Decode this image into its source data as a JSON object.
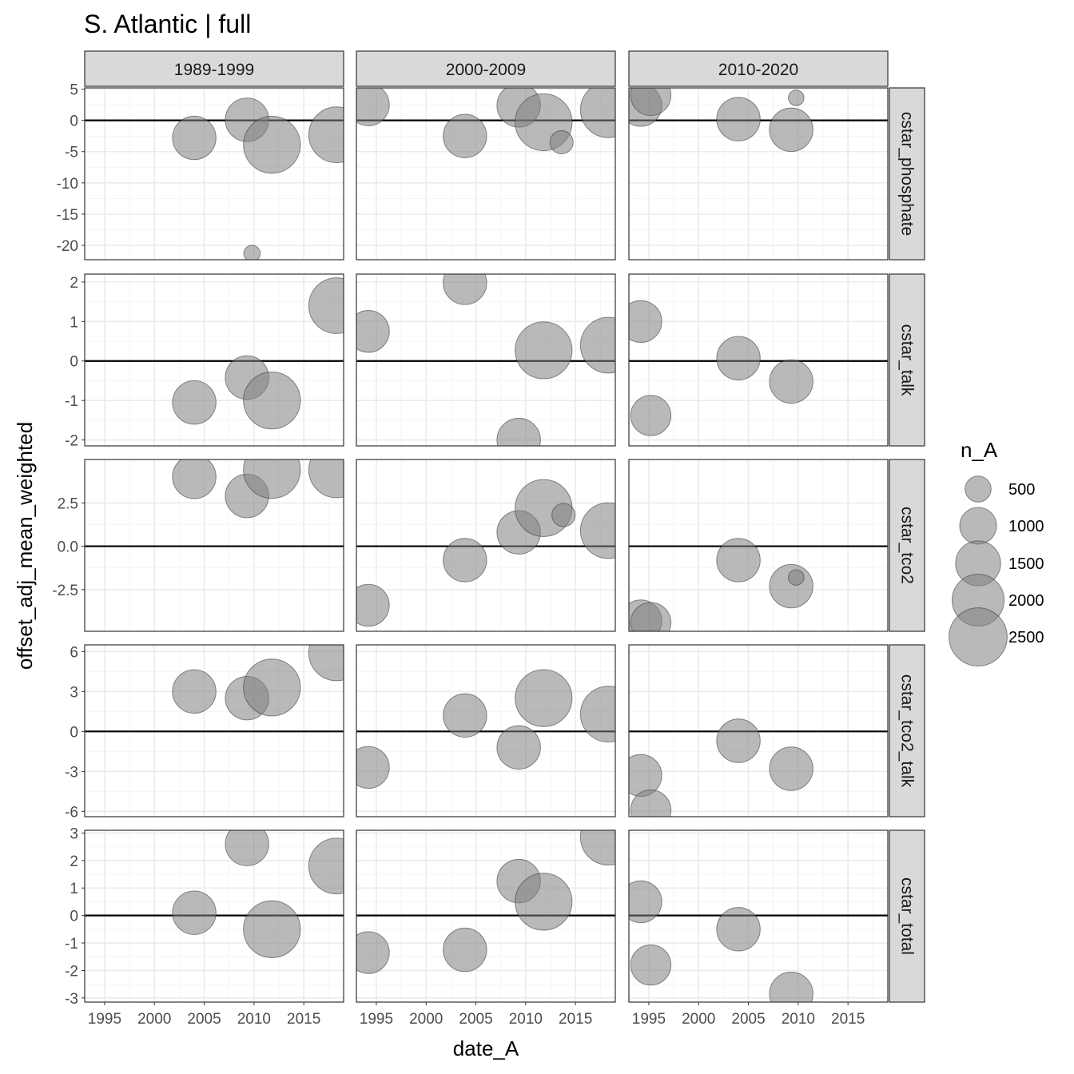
{
  "chart_data": {
    "type": "scatter",
    "title": "S. Atlantic | full",
    "xlabel": "date_A",
    "ylabel": "offset_adj_mean_weighted",
    "xlim": [
      1993,
      2019
    ],
    "x_ticks": [
      1995,
      2000,
      2005,
      2010,
      2015
    ],
    "x_tick_labels": [
      "1995",
      "2000",
      "2005",
      "2010",
      "2015"
    ],
    "columns": [
      "1989-1999",
      "2000-2009",
      "2010-2020"
    ],
    "rows": [
      {
        "label": "cstar_phosphate",
        "ylim": [
          -22.3,
          5.2
        ],
        "ticks": [
          5,
          0,
          -5,
          -10,
          -15,
          -20
        ],
        "tick_labels": [
          "5",
          "0",
          "-5",
          "-10",
          "-15",
          "-20"
        ],
        "panels": [
          [
            {
              "x": 2004,
              "y": -2.8,
              "n": 1400
            },
            {
              "x": 2009.3,
              "y": 0.1,
              "n": 1400
            },
            {
              "x": 2011.8,
              "y": -3.9,
              "n": 2400
            },
            {
              "x": 2018.3,
              "y": -2.3,
              "n": 2300
            },
            {
              "x": 2009.8,
              "y": -21.3,
              "n": 200
            }
          ],
          [
            {
              "x": 1994.2,
              "y": 2.5,
              "n": 1300
            },
            {
              "x": 2003.9,
              "y": -2.5,
              "n": 1400
            },
            {
              "x": 2009.3,
              "y": 2.4,
              "n": 1400
            },
            {
              "x": 2011.8,
              "y": -0.3,
              "n": 2400
            },
            {
              "x": 2013.6,
              "y": -3.5,
              "n": 400
            },
            {
              "x": 2018.3,
              "y": 1.7,
              "n": 2300
            }
          ],
          [
            {
              "x": 1994.2,
              "y": 2.4,
              "n": 1300
            },
            {
              "x": 1995.2,
              "y": 4.0,
              "n": 1200
            },
            {
              "x": 2004,
              "y": 0.2,
              "n": 1400
            },
            {
              "x": 2009.3,
              "y": -1.5,
              "n": 1400
            },
            {
              "x": 2009.8,
              "y": 3.6,
              "n": 180
            }
          ]
        ]
      },
      {
        "label": "cstar_talk",
        "ylim": [
          -2.15,
          2.2
        ],
        "ticks": [
          2,
          1,
          0,
          -1,
          -2
        ],
        "tick_labels": [
          "2",
          "1",
          "0",
          "-1",
          "-2"
        ],
        "panels": [
          [
            {
              "x": 2004,
              "y": -1.05,
              "n": 1400
            },
            {
              "x": 2009.3,
              "y": -0.42,
              "n": 1400
            },
            {
              "x": 2011.8,
              "y": -1.0,
              "n": 2400
            },
            {
              "x": 2018.3,
              "y": 1.4,
              "n": 2300
            }
          ],
          [
            {
              "x": 1994.2,
              "y": 0.75,
              "n": 1300
            },
            {
              "x": 2003.9,
              "y": 1.98,
              "n": 1400
            },
            {
              "x": 2009.3,
              "y": -2.0,
              "n": 1400
            },
            {
              "x": 2011.8,
              "y": 0.27,
              "n": 2400
            },
            {
              "x": 2018.3,
              "y": 0.4,
              "n": 2300
            }
          ],
          [
            {
              "x": 1994.2,
              "y": 1.0,
              "n": 1300
            },
            {
              "x": 1995.2,
              "y": -1.38,
              "n": 1200
            },
            {
              "x": 2004,
              "y": 0.07,
              "n": 1400
            },
            {
              "x": 2009.3,
              "y": -0.52,
              "n": 1400
            }
          ]
        ]
      },
      {
        "label": "cstar_tco2",
        "ylim": [
          -4.9,
          5.0
        ],
        "ticks": [
          2.5,
          0.0,
          -2.5
        ],
        "tick_labels": [
          "2.5",
          "0.0",
          "-2.5"
        ],
        "panels": [
          [
            {
              "x": 2004,
              "y": 4.0,
              "n": 1400
            },
            {
              "x": 2009.3,
              "y": 2.9,
              "n": 1400
            },
            {
              "x": 2011.8,
              "y": 4.4,
              "n": 2400
            },
            {
              "x": 2018.3,
              "y": 4.4,
              "n": 2300
            }
          ],
          [
            {
              "x": 1994.2,
              "y": -3.4,
              "n": 1300
            },
            {
              "x": 2003.9,
              "y": -0.8,
              "n": 1400
            },
            {
              "x": 2009.3,
              "y": 0.8,
              "n": 1400
            },
            {
              "x": 2011.8,
              "y": 2.2,
              "n": 2400
            },
            {
              "x": 2013.8,
              "y": 1.8,
              "n": 400
            },
            {
              "x": 2018.3,
              "y": 0.9,
              "n": 2300
            }
          ],
          [
            {
              "x": 1994.2,
              "y": -4.3,
              "n": 1300
            },
            {
              "x": 1995.2,
              "y": -4.4,
              "n": 1200
            },
            {
              "x": 2004,
              "y": -0.8,
              "n": 1400
            },
            {
              "x": 2009.3,
              "y": -2.3,
              "n": 1400
            },
            {
              "x": 2009.8,
              "y": -1.8,
              "n": 180
            }
          ]
        ]
      },
      {
        "label": "cstar_tco2_talk",
        "ylim": [
          -6.4,
          6.5
        ],
        "ticks": [
          6,
          3,
          0,
          -3,
          -6
        ],
        "tick_labels": [
          "6",
          "3",
          "0",
          "-3",
          "-6"
        ],
        "panels": [
          [
            {
              "x": 2004,
              "y": 3.0,
              "n": 1400
            },
            {
              "x": 2009.3,
              "y": 2.5,
              "n": 1400
            },
            {
              "x": 2011.8,
              "y": 3.3,
              "n": 2400
            },
            {
              "x": 2018.3,
              "y": 5.9,
              "n": 2300
            }
          ],
          [
            {
              "x": 1994.2,
              "y": -2.7,
              "n": 1300
            },
            {
              "x": 2003.9,
              "y": 1.2,
              "n": 1400
            },
            {
              "x": 2009.3,
              "y": -1.2,
              "n": 1400
            },
            {
              "x": 2011.8,
              "y": 2.5,
              "n": 2400
            },
            {
              "x": 2018.3,
              "y": 1.3,
              "n": 2300
            }
          ],
          [
            {
              "x": 1994.2,
              "y": -3.3,
              "n": 1300
            },
            {
              "x": 1995.2,
              "y": -5.9,
              "n": 1200
            },
            {
              "x": 2004,
              "y": -0.7,
              "n": 1400
            },
            {
              "x": 2009.3,
              "y": -2.8,
              "n": 1400
            }
          ]
        ]
      },
      {
        "label": "cstar_total",
        "ylim": [
          -3.15,
          3.1
        ],
        "ticks": [
          3,
          2,
          1,
          0,
          -1,
          -2,
          -3
        ],
        "tick_labels": [
          "3",
          "2",
          "1",
          "0",
          "-1",
          "-2",
          "-3"
        ],
        "panels": [
          [
            {
              "x": 2004,
              "y": 0.1,
              "n": 1400
            },
            {
              "x": 2009.3,
              "y": 2.6,
              "n": 1400
            },
            {
              "x": 2011.8,
              "y": -0.5,
              "n": 2400
            },
            {
              "x": 2018.3,
              "y": 1.8,
              "n": 2300
            }
          ],
          [
            {
              "x": 1994.2,
              "y": -1.35,
              "n": 1300
            },
            {
              "x": 2003.9,
              "y": -1.25,
              "n": 1400
            },
            {
              "x": 2009.3,
              "y": 1.25,
              "n": 1400
            },
            {
              "x": 2011.8,
              "y": 0.5,
              "n": 2400
            },
            {
              "x": 2018.3,
              "y": 2.85,
              "n": 2300
            }
          ],
          [
            {
              "x": 1994.2,
              "y": 0.5,
              "n": 1300
            },
            {
              "x": 1995.2,
              "y": -1.8,
              "n": 1200
            },
            {
              "x": 2004,
              "y": -0.5,
              "n": 1400
            },
            {
              "x": 2009.3,
              "y": -2.85,
              "n": 1400
            }
          ]
        ]
      }
    ],
    "legend": {
      "title": "n_A",
      "position": "right",
      "values": [
        500,
        1000,
        1500,
        2000,
        2500
      ],
      "labels": [
        "500",
        "1000",
        "1500",
        "2000",
        "2500"
      ]
    },
    "reference_line_y": 0,
    "colors": {
      "point_fill": "#808080",
      "point_stroke": "#333333",
      "strip_fill": "#d9d9d9",
      "grid_major": "#ebebeb",
      "grid_minor": "#f4f4f4",
      "text": "#000000",
      "tick_text": "#4d4d4d"
    }
  }
}
